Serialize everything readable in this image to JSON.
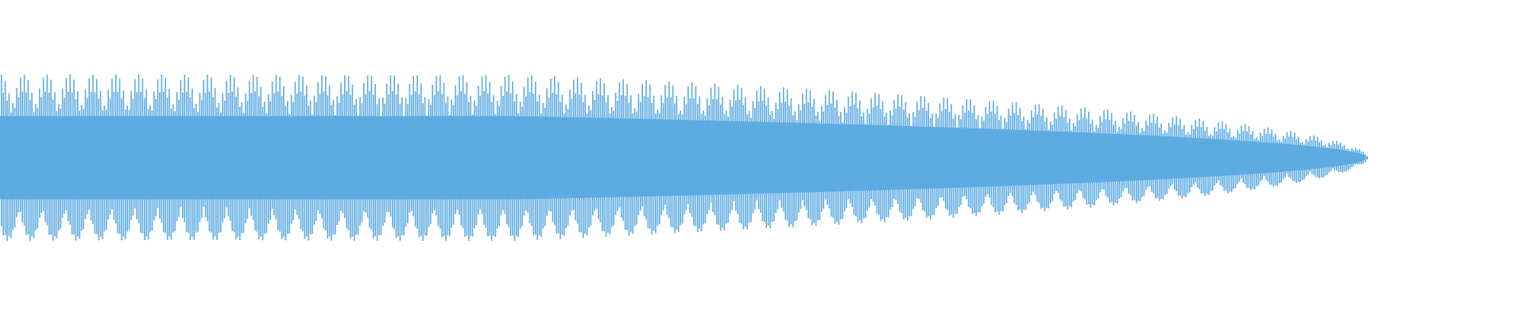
{
  "waveform": {
    "color": "#5DABE1",
    "background": "#FFFFFF"
  }
}
